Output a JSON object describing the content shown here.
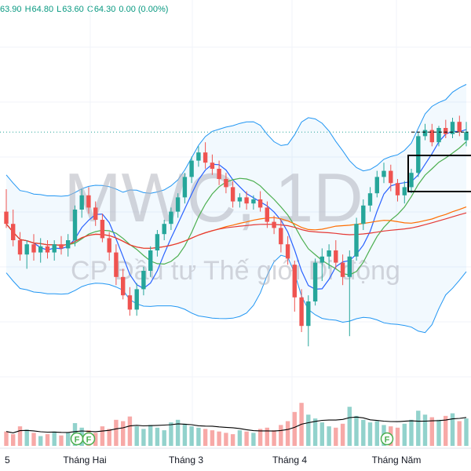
{
  "ohlc": {
    "open": "63.90",
    "high_label": "H",
    "high": "64.80",
    "low_label": "L",
    "low": "63.60",
    "close_label": "C",
    "close": "64.30",
    "change": "0.00 (0.00%)"
  },
  "watermark": {
    "symbol": "MWC, 1D",
    "company": "CP Đầu tư Thế giới Di động"
  },
  "colors": {
    "up": "#26a69a",
    "down": "#ef5350",
    "band": "#2196f3",
    "ma_blue": "#2962ff",
    "ma_green": "#4caf50",
    "ma_orange": "#ff6d00",
    "ma_red": "#e53935"
  },
  "chart_data": {
    "type": "candlestick",
    "x_tick_labels": [
      "5",
      "Tháng Hai",
      "Tháng 3",
      "Tháng 4",
      "Tháng Năm"
    ],
    "event_markers": [
      "F",
      "F",
      "F"
    ],
    "y_range": [
      50,
      70
    ],
    "candles": [
      [
        60.4,
        61.5,
        59.6,
        59.8
      ],
      [
        59.8,
        60.5,
        58.7,
        59.0
      ],
      [
        59.0,
        59.4,
        58.0,
        58.3
      ],
      [
        58.3,
        59.0,
        57.6,
        58.8
      ],
      [
        58.8,
        59.3,
        58.0,
        58.4
      ],
      [
        58.4,
        59.1,
        57.9,
        58.7
      ],
      [
        58.7,
        59.0,
        58.1,
        58.4
      ],
      [
        58.4,
        59.0,
        58.0,
        58.8
      ],
      [
        58.8,
        59.2,
        58.3,
        58.6
      ],
      [
        58.6,
        59.3,
        58.2,
        59.0
      ],
      [
        59.0,
        60.7,
        58.7,
        60.5
      ],
      [
        60.5,
        61.5,
        60.1,
        61.2
      ],
      [
        61.2,
        61.6,
        60.3,
        60.6
      ],
      [
        60.6,
        60.9,
        59.7,
        60.0
      ],
      [
        60.0,
        60.3,
        58.9,
        59.1
      ],
      [
        59.1,
        59.4,
        58.0,
        58.4
      ],
      [
        58.4,
        58.8,
        56.8,
        57.2
      ],
      [
        57.2,
        57.6,
        56.1,
        56.3
      ],
      [
        56.3,
        56.7,
        55.3,
        55.6
      ],
      [
        55.6,
        56.9,
        55.3,
        56.6
      ],
      [
        56.6,
        57.7,
        56.3,
        57.5
      ],
      [
        57.5,
        58.7,
        57.2,
        58.5
      ],
      [
        58.5,
        59.5,
        58.2,
        59.3
      ],
      [
        59.3,
        60.0,
        59.0,
        59.8
      ],
      [
        59.8,
        60.6,
        59.5,
        60.4
      ],
      [
        60.4,
        61.3,
        60.1,
        61.1
      ],
      [
        61.1,
        62.3,
        60.8,
        62.1
      ],
      [
        62.1,
        63.1,
        61.8,
        62.9
      ],
      [
        62.9,
        63.6,
        62.6,
        63.3
      ],
      [
        63.3,
        63.8,
        62.5,
        62.8
      ],
      [
        62.8,
        63.2,
        62.2,
        62.5
      ],
      [
        62.5,
        62.9,
        61.7,
        62.0
      ],
      [
        62.0,
        62.3,
        61.3,
        61.6
      ],
      [
        61.6,
        61.9,
        60.6,
        60.9
      ],
      [
        60.9,
        61.3,
        60.6,
        61.1
      ],
      [
        61.1,
        61.4,
        60.5,
        60.8
      ],
      [
        60.8,
        61.2,
        60.5,
        61.0
      ],
      [
        61.0,
        61.4,
        60.4,
        60.6
      ],
      [
        60.6,
        60.9,
        59.6,
        59.9
      ],
      [
        59.9,
        60.2,
        59.3,
        59.6
      ],
      [
        59.6,
        60.0,
        58.4,
        58.8
      ],
      [
        58.8,
        59.2,
        57.8,
        58.1
      ],
      [
        57.8,
        58.0,
        55.5,
        56.2
      ],
      [
        56.2,
        56.6,
        54.5,
        54.8
      ],
      [
        54.8,
        56.3,
        53.8,
        56.0
      ],
      [
        56.0,
        58.1,
        55.8,
        57.9
      ],
      [
        57.9,
        58.6,
        57.0,
        58.2
      ],
      [
        58.2,
        58.8,
        57.6,
        58.5
      ],
      [
        58.5,
        59.0,
        57.6,
        57.9
      ],
      [
        57.9,
        58.3,
        56.8,
        57.2
      ],
      [
        57.2,
        58.5,
        54.3,
        58.2
      ],
      [
        58.2,
        60.1,
        58.0,
        59.8
      ],
      [
        59.8,
        61.0,
        59.5,
        60.7
      ],
      [
        60.7,
        61.6,
        60.4,
        61.3
      ],
      [
        61.3,
        62.4,
        61.1,
        62.1
      ],
      [
        62.1,
        62.8,
        61.8,
        62.4
      ],
      [
        62.4,
        62.7,
        61.4,
        61.8
      ],
      [
        61.8,
        62.0,
        60.9,
        61.2
      ],
      [
        61.2,
        61.9,
        60.8,
        61.6
      ],
      [
        61.6,
        62.5,
        61.3,
        62.3
      ],
      [
        62.3,
        64.3,
        62.1,
        64.1
      ],
      [
        64.1,
        64.7,
        63.9,
        64.4
      ],
      [
        64.4,
        64.7,
        63.6,
        63.8
      ],
      [
        63.8,
        64.6,
        63.6,
        64.5
      ],
      [
        64.5,
        64.9,
        64.0,
        64.2
      ],
      [
        64.2,
        65.0,
        64.0,
        64.8
      ],
      [
        64.8,
        65.1,
        64.1,
        64.3
      ],
      [
        63.9,
        64.8,
        63.6,
        64.3
      ]
    ],
    "volume_range": [
      0,
      100
    ],
    "volumes": [
      22,
      18,
      30,
      25,
      20,
      15,
      18,
      22,
      16,
      20,
      35,
      28,
      24,
      20,
      30,
      26,
      40,
      38,
      45,
      30,
      26,
      32,
      28,
      24,
      36,
      40,
      34,
      30,
      28,
      26,
      24,
      22,
      20,
      18,
      24,
      22,
      20,
      26,
      28,
      24,
      32,
      38,
      52,
      66,
      48,
      42,
      36,
      30,
      28,
      34,
      60,
      46,
      40,
      36,
      38,
      32,
      30,
      28,
      34,
      40,
      54,
      48,
      44,
      40,
      46,
      50,
      38,
      42
    ]
  }
}
